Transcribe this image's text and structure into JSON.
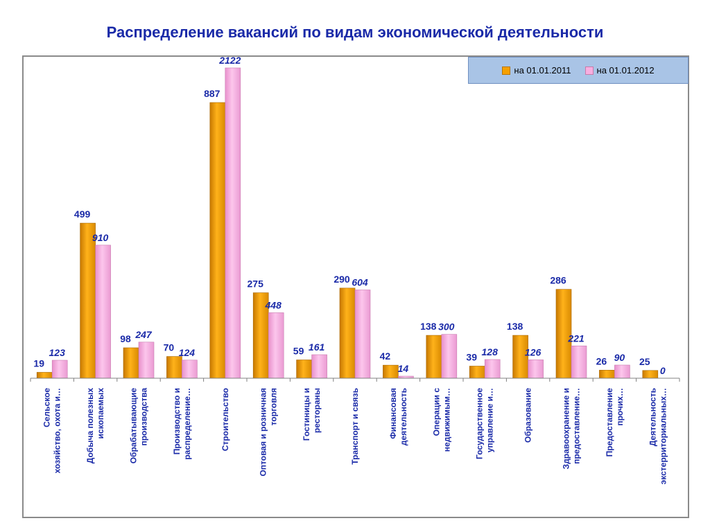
{
  "title": "Распределение вакансий  по видам экономической деятельности",
  "legend": {
    "series_a": "на 01.01.2011",
    "series_b": "на 01.01.2012"
  },
  "colors": {
    "series_a": "#f5a000",
    "series_b": "#f7aee0",
    "label_a": "#1a2aa8",
    "label_b": "#1a2aa8",
    "category_text": "#1a2aa8"
  },
  "chart_data": {
    "type": "bar",
    "title": "Распределение вакансий  по видам экономической деятельности",
    "categories": [
      [
        "Сельское",
        "хозяйство, охота и…"
      ],
      [
        "Добыча полезных",
        "ископаемых"
      ],
      [
        "Обрабатывающие",
        "производства"
      ],
      [
        "Производство и",
        "распределение…"
      ],
      [
        "Строительство"
      ],
      [
        "Оптовая и розничная",
        "торговля"
      ],
      [
        "Гостиницы и",
        "рестораны"
      ],
      [
        "Транспорт и связь"
      ],
      [
        "Финансовая",
        "деятельность"
      ],
      [
        "Операции с",
        "недвижимым…"
      ],
      [
        "Государственное",
        "управление и…"
      ],
      [
        "Образование"
      ],
      [
        "Здравоохранение и",
        "предоставление…"
      ],
      [
        "Предоставление",
        "прочих…"
      ],
      [
        "Деятельность",
        "экстерриториальных…"
      ]
    ],
    "series": [
      {
        "name": "на 01.01.2011",
        "values": [
          19,
          499,
          98,
          70,
          887,
          275,
          59,
          290,
          42,
          138,
          39,
          138,
          286,
          26,
          25
        ]
      },
      {
        "name": "на 01.01.2012",
        "values": [
          123,
          910,
          247,
          124,
          2122,
          448,
          161,
          604,
          14,
          300,
          128,
          126,
          221,
          90,
          0
        ]
      }
    ],
    "legend_position": "top-right",
    "grid": false,
    "scale_note": "two series drawn on separate scales"
  }
}
